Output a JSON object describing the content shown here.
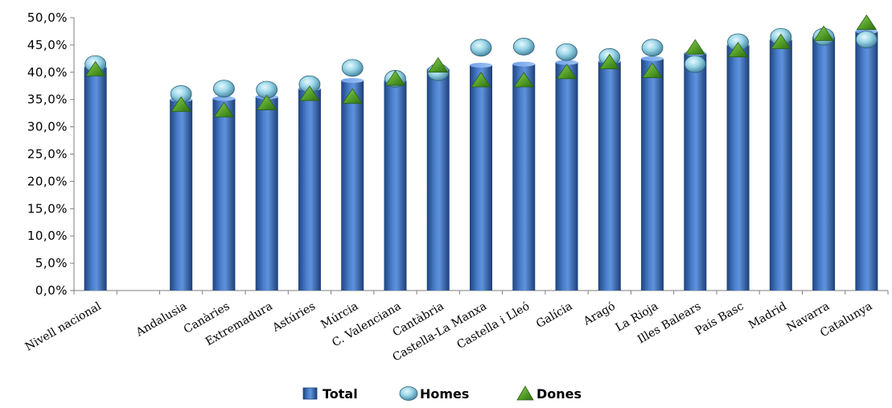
{
  "chart_data": {
    "type": "bar",
    "categories": [
      "Nivell nacional",
      "",
      "Andalusia",
      "Canàries",
      "Extremadura",
      "Astúries",
      "Múrcia",
      "C. Valenciana",
      "Cantàbria",
      "Castella-La Manxa",
      "Castella i Lleó",
      "Galícia",
      "Aragó",
      "La Rioja",
      "Illes Balears",
      "País Basc",
      "Madrid",
      "Navarra",
      "Catalunya"
    ],
    "series": [
      {
        "name": "Total",
        "kind": "bar",
        "color": "#3d6fb8",
        "values": [
          41.0,
          null,
          35.0,
          35.2,
          35.5,
          37.0,
          38.5,
          38.5,
          40.6,
          41.3,
          41.5,
          41.8,
          42.0,
          42.5,
          43.5,
          45.0,
          46.0,
          46.5,
          47.5
        ]
      },
      {
        "name": "Homes",
        "kind": "marker",
        "shape": "sphere",
        "color": "#8fd0e4",
        "values": [
          41.5,
          null,
          36.0,
          37.0,
          36.8,
          37.8,
          40.8,
          38.8,
          40.0,
          44.5,
          44.7,
          43.7,
          42.8,
          44.5,
          41.5,
          45.5,
          46.5,
          46.5,
          46.0
        ]
      },
      {
        "name": "Dones",
        "kind": "marker",
        "shape": "triangle",
        "color": "#5aa02c",
        "values": [
          40.5,
          null,
          34.0,
          33.0,
          34.3,
          36.0,
          35.5,
          38.8,
          41.2,
          38.5,
          38.5,
          40.0,
          41.8,
          40.2,
          44.5,
          44.0,
          45.5,
          47.0,
          49.0
        ]
      }
    ],
    "yticks": [
      "0,0%",
      "5,0%",
      "10,0%",
      "15,0%",
      "20,0%",
      "25,0%",
      "30,0%",
      "35,0%",
      "40,0%",
      "45,0%",
      "50,0%"
    ],
    "ylim": [
      0,
      50
    ],
    "grid": false,
    "legend_position": "bottom-center",
    "legend": [
      {
        "label": "Total",
        "icon": "bar-swatch-icon"
      },
      {
        "label": "Homes",
        "icon": "sphere-icon"
      },
      {
        "label": "Dones",
        "icon": "triangle-icon"
      }
    ]
  }
}
